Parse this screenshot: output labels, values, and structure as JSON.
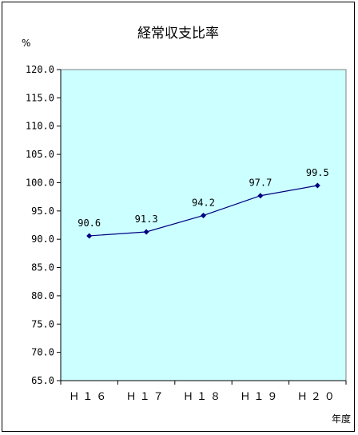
{
  "chart_data": {
    "type": "line",
    "title": "経常収支比率",
    "ylabel": "%",
    "xlabel": "年度",
    "categories": [
      "H16",
      "H17",
      "H18",
      "H19",
      "H20"
    ],
    "category_labels": [
      "Ｈ１６",
      "Ｈ１７",
      "Ｈ１８",
      "Ｈ１９",
      "Ｈ２０"
    ],
    "series": [
      {
        "values": [
          90.6,
          91.3,
          94.2,
          97.7,
          99.5
        ],
        "labels": [
          "90.6",
          "91.3",
          "94.2",
          "97.7",
          "99.5"
        ]
      }
    ],
    "ylim": [
      65.0,
      120.0
    ],
    "y_ticks": [
      "65.0",
      "70.0",
      "75.0",
      "80.0",
      "85.0",
      "90.0",
      "95.0",
      "100.0",
      "105.0",
      "110.0",
      "115.0",
      "120.0"
    ],
    "grid": false,
    "legend": "none",
    "plot_background": "#ccffff",
    "line_color": "#000080",
    "marker": "diamond"
  }
}
